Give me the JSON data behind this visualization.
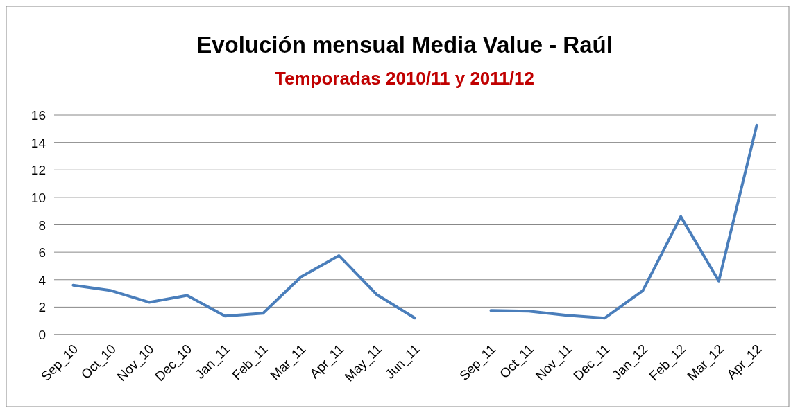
{
  "chart_data": {
    "type": "line",
    "title": "Evolución mensual Media Value - Raúl",
    "subtitle": "Temporadas 2010/11 y 2011/12",
    "categories": [
      "Sep_10",
      "Oct_10",
      "Nov_10",
      "Dec_10",
      "Jan_11",
      "Feb_11",
      "Mar_11",
      "Apr_11",
      "May_11",
      "Jun_11",
      null,
      "Sep_11",
      "Oct_11",
      "Nov_11",
      "Dec_11",
      "Jan_12",
      "Feb_12",
      "Mar_12",
      "Apr_12"
    ],
    "series": [
      {
        "color": "#4a7ebb",
        "values": [
          3.6,
          3.2,
          2.35,
          2.85,
          1.35,
          1.55,
          4.2,
          5.75,
          2.9,
          1.2,
          null,
          1.75,
          1.7,
          1.4,
          1.2,
          3.2,
          8.6,
          3.9,
          15.25
        ]
      }
    ],
    "ylim": [
      0,
      16
    ],
    "yticks": [
      0,
      2,
      4,
      6,
      8,
      10,
      12,
      14,
      16
    ],
    "grid": "y",
    "marker": "none",
    "line_style": "solid"
  }
}
